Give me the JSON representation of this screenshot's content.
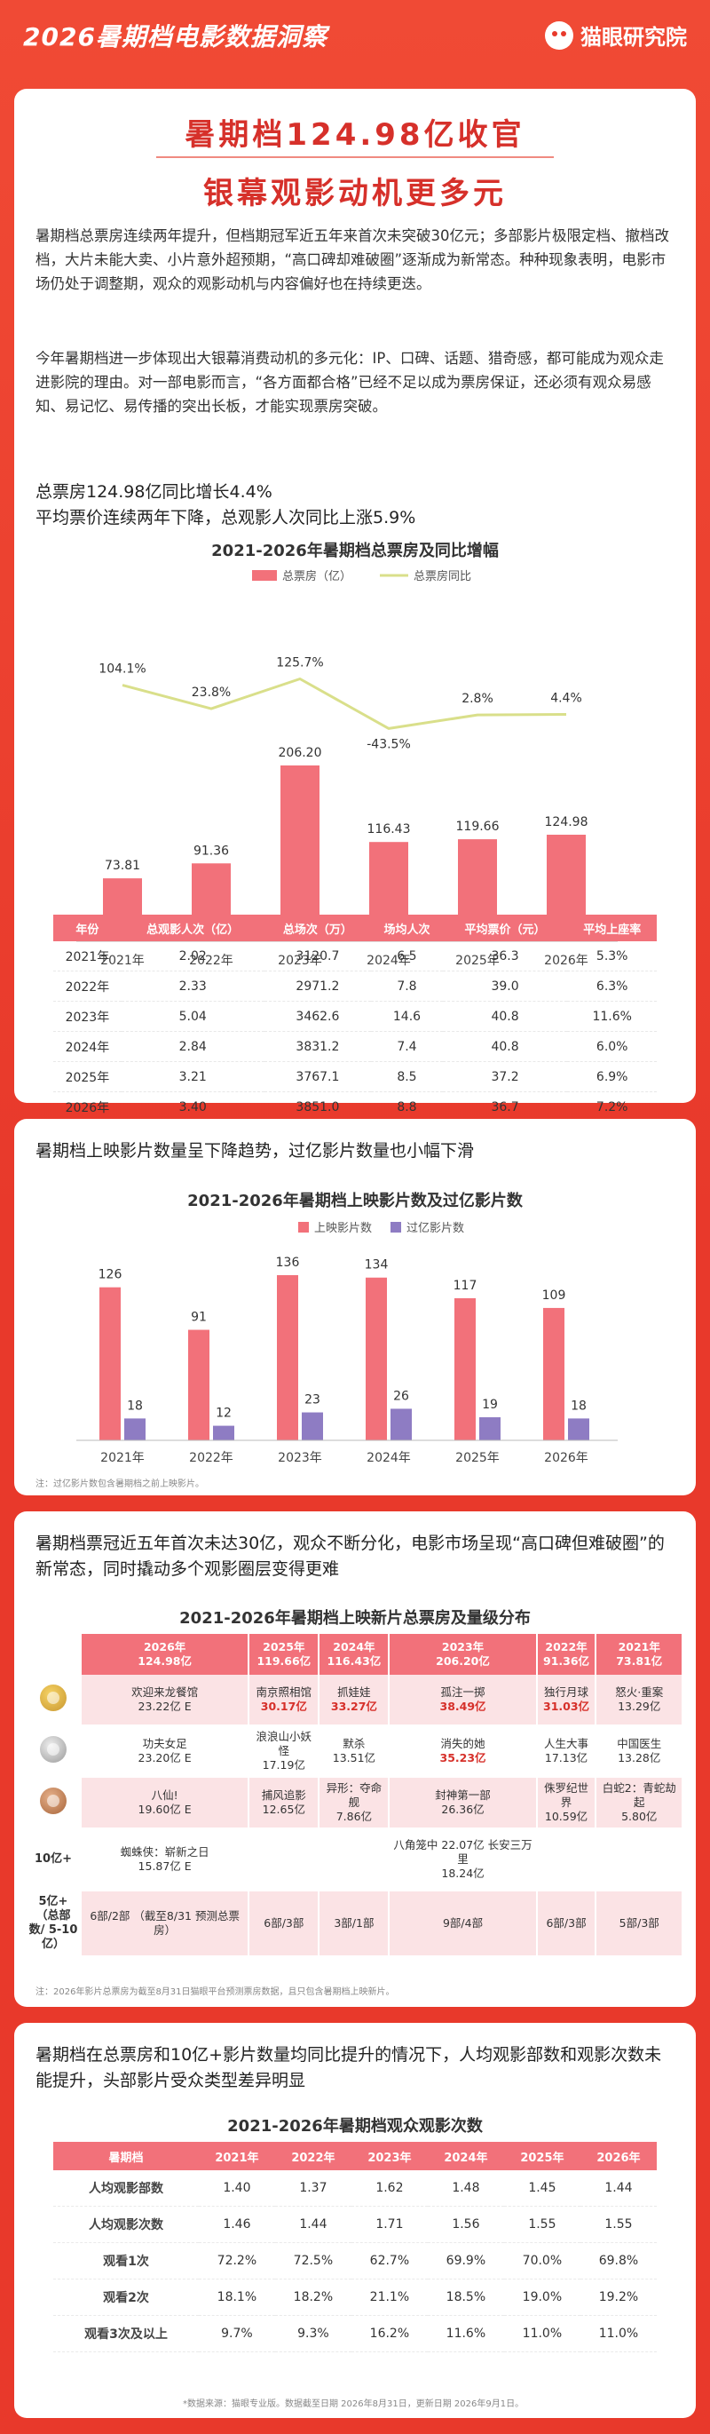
{
  "header": {
    "title": "2026暑期档电影数据洞察",
    "brand": "猫眼研究院"
  },
  "hero": {
    "line1": "暑期档124.98亿收官",
    "line2": "银幕观影动机更多元"
  },
  "intro": {
    "p1": "暑期档总票房连续两年提升，但档期冠军近五年来首次未突破30亿元；多部影片极限定档、撤档改档，大片未能大卖、小片意外超预期，“高口碑却难破圈”逐渐成为新常态。种种现象表明，电影市场仍处于调整期，观众的观影动机与内容偏好也在持续更迭。",
    "p2": "今年暑期档进一步体现出大银幕消费动机的多元化：IP、口碑、话题、猎奇感，都可能成为观众走进影院的理由。对一部电影而言，“各方面都合格”已经不足以成为票房保证，还必须有观众易感知、易记忆、易传播的突出长板，才能实现票房突破。"
  },
  "section1": {
    "heading1": "总票房124.98亿同比增长4.4%",
    "heading2": "平均票价连续两年下降，总观影人次同比上涨5.9%"
  },
  "colors": {
    "bar_pink": "#f2717a",
    "bar_purple": "#8e7cc3",
    "line_yellow": "#d9df8a",
    "accent_red": "#d6302a"
  },
  "chart_data": [
    {
      "type": "bar",
      "title": "2021-2026年暑期档总票房及同比增幅",
      "categories": [
        "2021年",
        "2022年",
        "2023年",
        "2024年",
        "2025年",
        "2026年"
      ],
      "series": [
        {
          "name": "总票房（亿）",
          "type": "bar",
          "values": [
            73.81,
            91.36,
            206.2,
            116.43,
            119.66,
            124.98
          ],
          "labels": [
            "73.81",
            "91.36",
            "206.20",
            "116.43",
            "119.66",
            "124.98"
          ]
        },
        {
          "name": "总票房同比",
          "type": "line",
          "values": [
            104.1,
            23.8,
            125.7,
            -43.5,
            2.8,
            4.4
          ],
          "labels": [
            "104.1%",
            "23.8%",
            "125.7%",
            "-43.5%",
            "2.8%",
            "4.4%"
          ]
        }
      ],
      "ylim": [
        0,
        220
      ],
      "legend": "top-center"
    },
    {
      "type": "bar",
      "title": "2021-2026年暑期档上映影片数及过亿影片数",
      "categories": [
        "2021年",
        "2022年",
        "2023年",
        "2024年",
        "2025年",
        "2026年"
      ],
      "series": [
        {
          "name": "上映影片数",
          "values": [
            126,
            91,
            136,
            134,
            117,
            109
          ]
        },
        {
          "name": "过亿影片数",
          "values": [
            18,
            12,
            23,
            26,
            19,
            18
          ]
        }
      ],
      "ylim": [
        0,
        150
      ],
      "legend": "top-center",
      "note": "注：过亿影片数包含暑期档之前上映影片。"
    },
    {
      "type": "table",
      "title": "2021-2026年暑期档观众观影次数",
      "columns": [
        "暑期档",
        "2021年",
        "2022年",
        "2023年",
        "2024年",
        "2025年",
        "2026年"
      ],
      "rows": [
        [
          "人均观影部数",
          "1.40",
          "1.37",
          "1.62",
          "1.48",
          "1.45",
          "1.44"
        ],
        [
          "人均观影次数",
          "1.46",
          "1.44",
          "1.71",
          "1.56",
          "1.55",
          "1.55"
        ],
        [
          "观看1次",
          "72.2%",
          "72.5%",
          "62.7%",
          "69.9%",
          "70.0%",
          "69.8%"
        ],
        [
          "观看2次",
          "18.1%",
          "18.2%",
          "21.1%",
          "18.5%",
          "19.0%",
          "19.2%"
        ],
        [
          "观看3次及以上",
          "9.7%",
          "9.3%",
          "16.2%",
          "11.6%",
          "11.0%",
          "11.0%"
        ]
      ],
      "footnote": "*数据来源：猫眼专业版。数据截至日期 2026年8月31日，更新日期 2026年9月1日。"
    }
  ],
  "stats_table": {
    "columns": [
      "年份",
      "总观影人次（亿）",
      "总场次（万）",
      "场均人次",
      "平均票价（元）",
      "平均上座率"
    ],
    "rows": [
      [
        "2021年",
        "2.02",
        "3120.7",
        "6.5",
        "36.3",
        "5.3%"
      ],
      [
        "2022年",
        "2.33",
        "2971.2",
        "7.8",
        "39.0",
        "6.3%"
      ],
      [
        "2023年",
        "5.04",
        "3462.6",
        "14.6",
        "40.8",
        "11.6%"
      ],
      [
        "2024年",
        "2.84",
        "3831.2",
        "7.4",
        "40.8",
        "6.0%"
      ],
      [
        "2025年",
        "3.21",
        "3767.1",
        "8.5",
        "37.2",
        "6.9%"
      ],
      [
        "2026年",
        "3.40",
        "3851.0",
        "8.8",
        "36.7",
        "7.2%"
      ]
    ]
  },
  "section2": {
    "heading": "暑期档上映影片数量呈下降趋势，过亿影片数量也小幅下滑"
  },
  "section3": {
    "heading": "暑期档票冠近五年首次未达30亿，观众不断分化，电影市场呈现“高口碑但难破圈”的新常态，同时撬动多个观影圈层变得更难",
    "title": "2021-2026年暑期档上映新片总票房及量级分布",
    "years": [
      {
        "year": "2026年",
        "total": "124.98亿"
      },
      {
        "year": "2025年",
        "total": "119.66亿"
      },
      {
        "year": "2024年",
        "total": "116.43亿"
      },
      {
        "year": "2023年",
        "total": "206.20亿"
      },
      {
        "year": "2022年",
        "total": "91.36亿"
      },
      {
        "year": "2021年",
        "total": "73.81亿"
      }
    ],
    "rows": [
      {
        "kind": "gold",
        "cells": [
          {
            "name": "欢迎来龙餐馆",
            "value": "23.22亿 E",
            "hl": false
          },
          {
            "name": "南京照相馆",
            "value": "30.17亿",
            "hl": true
          },
          {
            "name": "抓娃娃",
            "value": "33.27亿",
            "hl": true
          },
          {
            "name": "孤注一掷",
            "value": "38.49亿",
            "hl": true
          },
          {
            "name": "独行月球",
            "value": "31.03亿",
            "hl": true
          },
          {
            "name": "怒火·重案",
            "value": "13.29亿",
            "hl": false
          }
        ]
      },
      {
        "kind": "silver",
        "cells": [
          {
            "name": "功夫女足",
            "value": "23.20亿 E",
            "hl": false
          },
          {
            "name": "浪浪山小妖怪",
            "value": "17.19亿",
            "hl": false
          },
          {
            "name": "默杀",
            "value": "13.51亿",
            "hl": false
          },
          {
            "name": "消失的她",
            "value": "35.23亿",
            "hl": true
          },
          {
            "name": "人生大事",
            "value": "17.13亿",
            "hl": false
          },
          {
            "name": "中国医生",
            "value": "13.28亿",
            "hl": false
          }
        ]
      },
      {
        "kind": "bronze",
        "cells": [
          {
            "name": "八仙!",
            "value": "19.60亿 E",
            "hl": false
          },
          {
            "name": "捕风追影",
            "value": "12.65亿",
            "hl": false
          },
          {
            "name": "异形：夺命舰",
            "value": "7.86亿",
            "hl": false
          },
          {
            "name": "封神第一部",
            "value": "26.36亿",
            "hl": false
          },
          {
            "name": "侏罗纪世界",
            "value": "10.59亿",
            "hl": false
          },
          {
            "name": "白蛇2：青蛇劫起",
            "value": "5.80亿",
            "hl": false
          }
        ]
      },
      {
        "kind": "tier",
        "label": "10亿+",
        "cells": [
          {
            "name": "蜘蛛侠：崭新之日",
            "value": "15.87亿 E",
            "hl": false
          },
          {
            "name": "",
            "value": "",
            "hl": false
          },
          {
            "name": "",
            "value": "",
            "hl": false
          },
          {
            "name": "八角笼中 22.07亿 长安三万里",
            "value": "18.24亿",
            "hl": false
          },
          {
            "name": "",
            "value": "",
            "hl": false
          },
          {
            "name": "",
            "value": "",
            "hl": false
          }
        ]
      },
      {
        "kind": "tier",
        "label": "5亿+ （总部数/ 5-10亿）",
        "cells": [
          {
            "name": "6部/2部 （截至8/31 预测总票房）",
            "value": "",
            "hl": false
          },
          {
            "name": "6部/3部",
            "value": "",
            "hl": false
          },
          {
            "name": "3部/1部",
            "value": "",
            "hl": false
          },
          {
            "name": "9部/4部",
            "value": "",
            "hl": false
          },
          {
            "name": "6部/3部",
            "value": "",
            "hl": false
          },
          {
            "name": "5部/3部",
            "value": "",
            "hl": false
          }
        ]
      }
    ],
    "note": "注：2026年影片总票房为截至8月31日猫眼平台预测票房数据，且只包含暑期档上映新片。"
  },
  "section4": {
    "heading": "暑期档在总票房和10亿+影片数量均同比提升的情况下，人均观影部数和观影次数未能提升，头部影片受众类型差异明显"
  }
}
